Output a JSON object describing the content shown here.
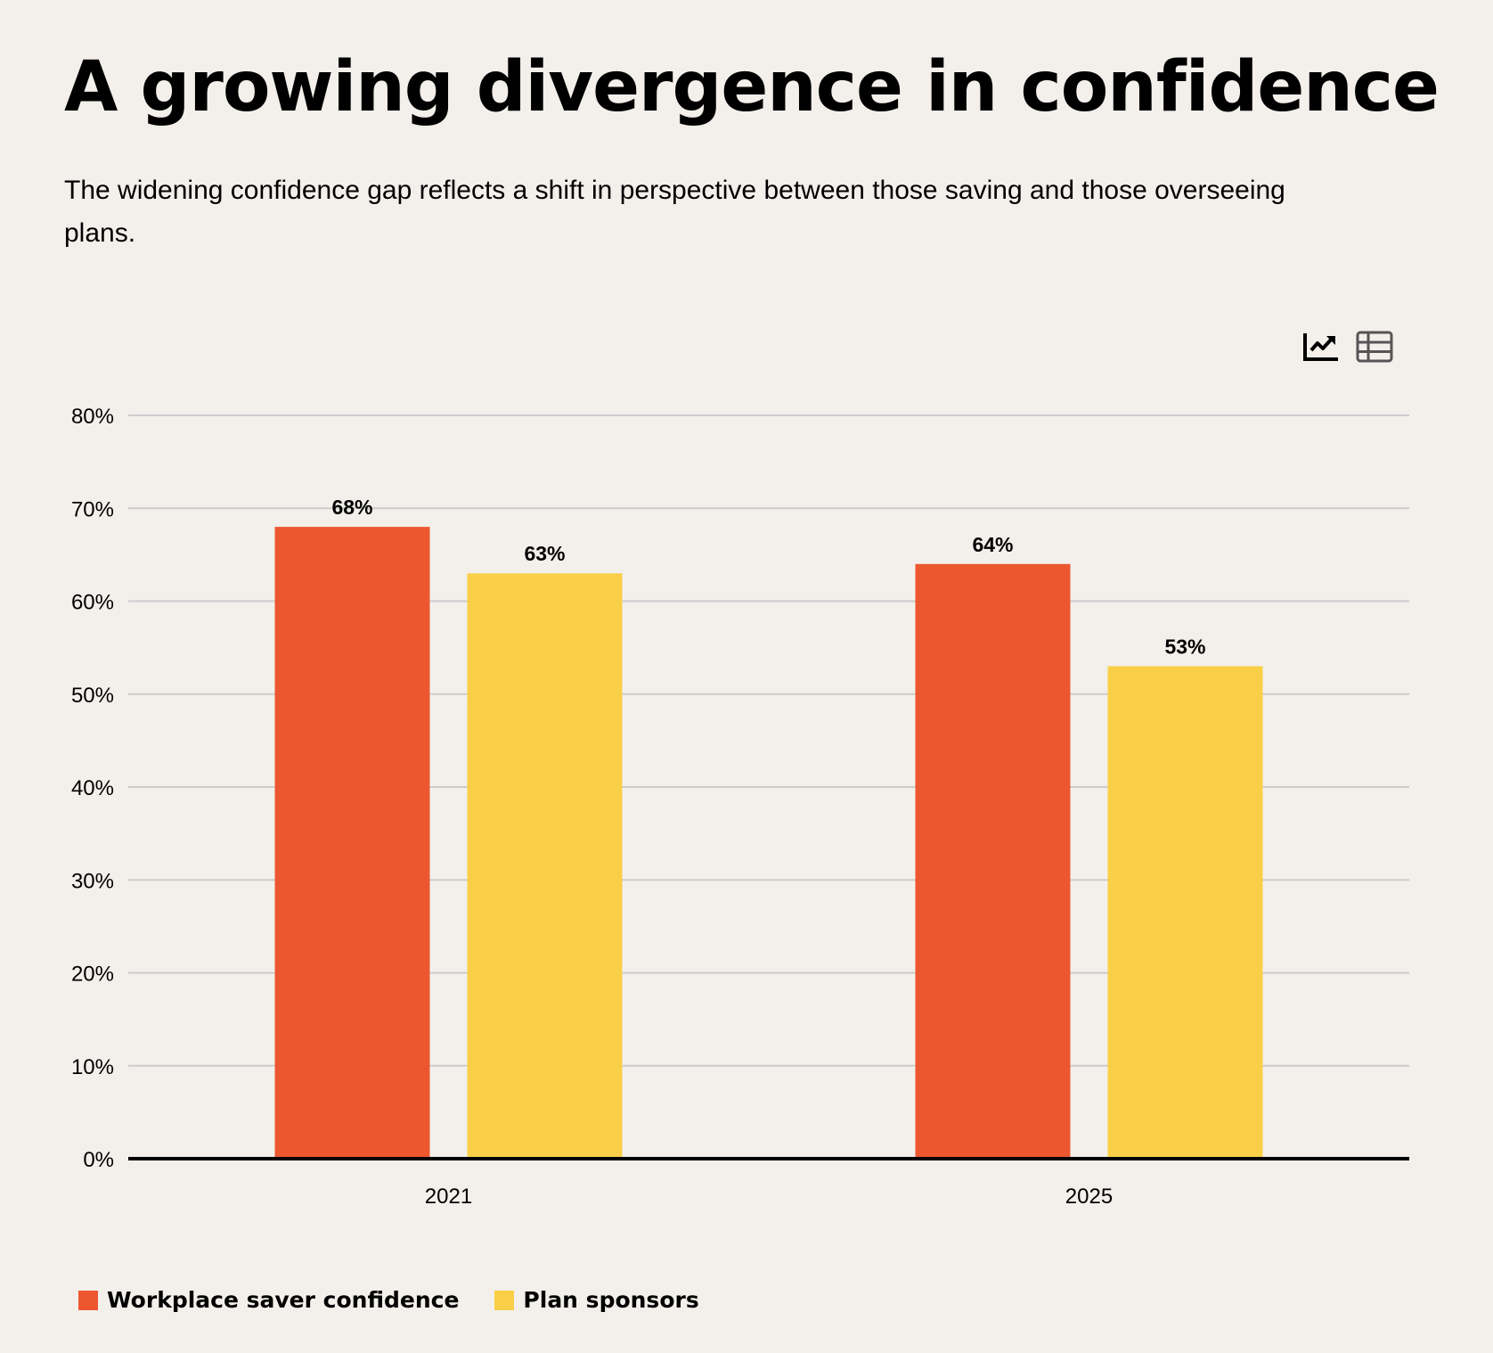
{
  "header": {
    "title": "A growing divergence in confidence",
    "subtitle": "The widening confidence gap reflects a shift in perspective between those saving and those overseeing plans."
  },
  "toolbar": {
    "chart_view_icon": "line-chart-icon",
    "table_view_icon": "table-icon"
  },
  "colors": {
    "workplace_saver": "#ec5730",
    "plan_sponsors": "#f8cf47",
    "background": "#f3f0eb",
    "grid": "#cccccc",
    "axis": "#000000"
  },
  "chart_data": {
    "type": "bar",
    "title": "A growing divergence in confidence",
    "subtitle": "The widening confidence gap reflects a shift in perspective between those saving and those overseeing plans.",
    "categories": [
      "2021",
      "2025"
    ],
    "series": [
      {
        "name": "Workplace saver confidence",
        "values": [
          68,
          64
        ],
        "color": "#ec5730"
      },
      {
        "name": "Plan sponsors",
        "values": [
          63,
          53
        ],
        "color": "#f8cf47"
      }
    ],
    "data_labels": [
      [
        "68%",
        "64%"
      ],
      [
        "63%",
        "53%"
      ]
    ],
    "xlabel": "",
    "ylabel": "",
    "ylim": [
      0,
      80
    ],
    "yticks": [
      0,
      10,
      20,
      30,
      40,
      50,
      60,
      70,
      80
    ],
    "ytick_labels": [
      "0%",
      "10%",
      "20%",
      "30%",
      "40%",
      "50%",
      "60%",
      "70%",
      "80%"
    ],
    "grid": true,
    "legend_position": "bottom-left"
  }
}
